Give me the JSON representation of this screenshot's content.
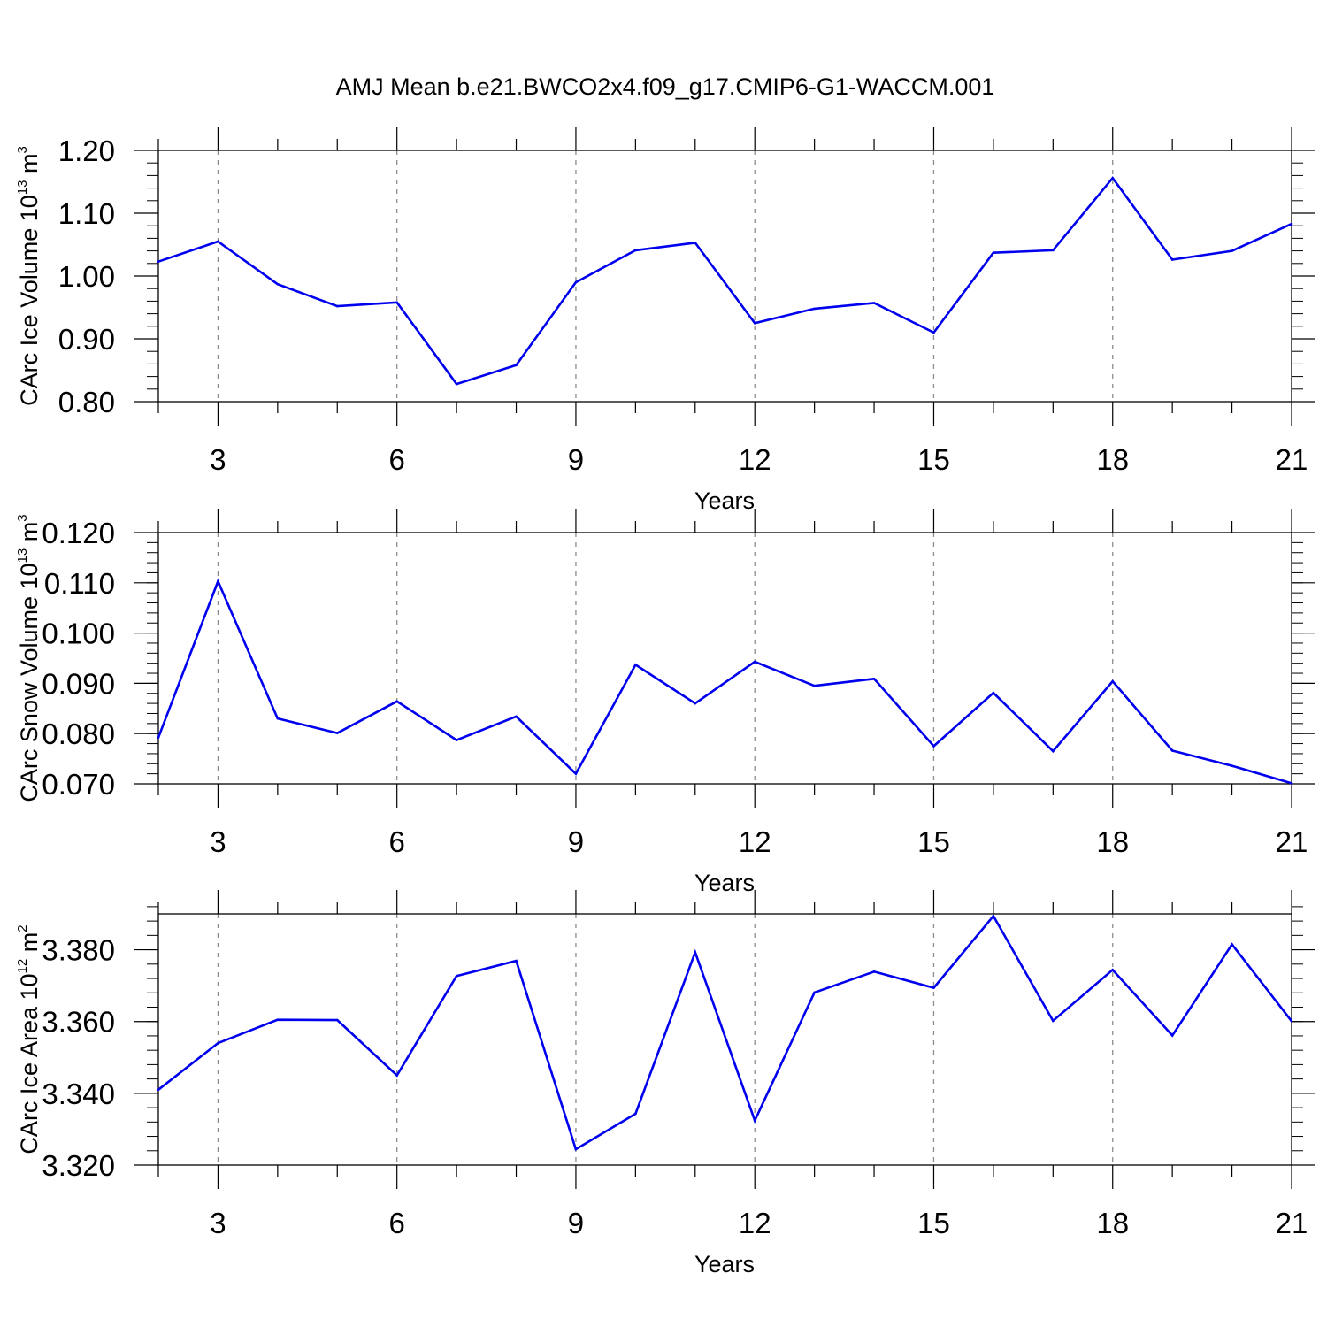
{
  "title": "AMJ Mean b.e21.BWCO2x4.f09_g17.CMIP6-G1-WACCM.001",
  "chart_data": [
    {
      "type": "line",
      "ylabel": {
        "main": "CArc Ice Volume 10",
        "exp": "13",
        "unit": " m",
        "unit_exp": "3"
      },
      "xlabel": "Years",
      "xlim": [
        2,
        21
      ],
      "ylim": [
        0.8,
        1.2
      ],
      "x_ticks": [
        3,
        6,
        9,
        12,
        15,
        18,
        21
      ],
      "y_ticks": [
        0.8,
        0.9,
        1.0,
        1.1,
        1.2
      ],
      "y_tick_labels": [
        "0.80",
        "0.90",
        "1.00",
        "1.10",
        "1.20"
      ],
      "y_minor_step": 0.02,
      "grid": "dashed vertical at major x ticks",
      "color": "#0000ee",
      "x": [
        2,
        3,
        4,
        5,
        6,
        7,
        8,
        9,
        10,
        11,
        12,
        13,
        14,
        15,
        16,
        17,
        18,
        19,
        20,
        21
      ],
      "values": [
        1.023,
        1.055,
        0.987,
        0.952,
        0.958,
        0.828,
        0.858,
        0.99,
        1.041,
        1.053,
        0.925,
        0.948,
        0.957,
        0.91,
        1.037,
        1.041,
        1.156,
        1.026,
        1.04,
        1.083
      ]
    },
    {
      "type": "line",
      "ylabel": {
        "main": "CArc Snow Volume 10",
        "exp": "13",
        "unit": " m",
        "unit_exp": "3"
      },
      "xlabel": "Years",
      "xlim": [
        2,
        21
      ],
      "ylim": [
        0.07,
        0.12
      ],
      "x_ticks": [
        3,
        6,
        9,
        12,
        15,
        18,
        21
      ],
      "y_ticks": [
        0.07,
        0.08,
        0.09,
        0.1,
        0.11,
        0.12
      ],
      "y_tick_labels": [
        "0.070",
        "0.080",
        "0.090",
        "0.100",
        "0.110",
        "0.120"
      ],
      "y_minor_step": 0.002,
      "grid": "dashed vertical at major x ticks",
      "color": "#0000ee",
      "x": [
        2,
        3,
        4,
        5,
        6,
        7,
        8,
        9,
        10,
        11,
        12,
        13,
        14,
        15,
        16,
        17,
        18,
        19,
        20,
        21
      ],
      "values": [
        0.0792,
        0.1103,
        0.083,
        0.0801,
        0.0864,
        0.0787,
        0.0834,
        0.072,
        0.0937,
        0.086,
        0.0943,
        0.0895,
        0.0909,
        0.0775,
        0.0881,
        0.0765,
        0.0904,
        0.0766,
        0.0736,
        0.0701
      ]
    },
    {
      "type": "line",
      "ylabel": {
        "main": "CArc Ice Area 10",
        "exp": "12",
        "unit": " m",
        "unit_exp": "2"
      },
      "xlabel": "Years",
      "xlim": [
        2,
        21
      ],
      "ylim": [
        3.32,
        3.39
      ],
      "x_ticks": [
        3,
        6,
        9,
        12,
        15,
        18,
        21
      ],
      "y_ticks": [
        3.32,
        3.34,
        3.36,
        3.38
      ],
      "y_tick_labels": [
        "3.320",
        "3.340",
        "3.360",
        "3.380"
      ],
      "y_minor_step": 0.004,
      "grid": "dashed vertical at major x ticks",
      "color": "#0000ee",
      "x": [
        2,
        3,
        4,
        5,
        6,
        7,
        8,
        9,
        10,
        11,
        12,
        13,
        14,
        15,
        16,
        17,
        18,
        19,
        20,
        21
      ],
      "values": [
        3.341,
        3.354,
        3.3605,
        3.3604,
        3.345,
        3.3727,
        3.3769,
        3.3244,
        3.3343,
        3.3793,
        3.3324,
        3.3681,
        3.3739,
        3.3694,
        3.3894,
        3.3602,
        3.3744,
        3.3561,
        3.3815,
        3.3601
      ]
    }
  ]
}
